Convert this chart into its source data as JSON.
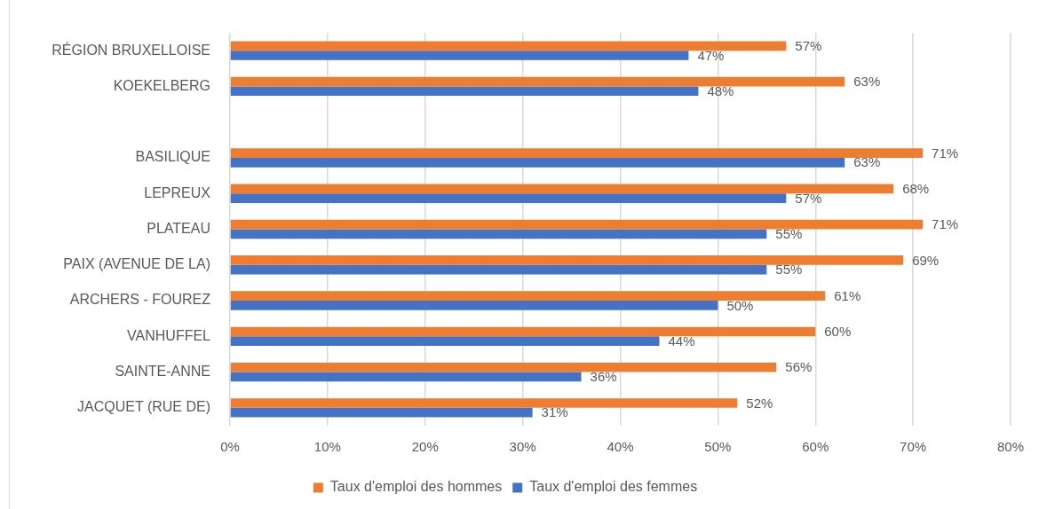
{
  "chart_data": {
    "type": "bar",
    "orientation": "horizontal",
    "categories": [
      "RÉGION BRUXELLOISE",
      "KOEKELBERG",
      null,
      "BASILIQUE",
      "LEPREUX",
      "PLATEAU",
      "PAIX (AVENUE DE LA)",
      "ARCHERS - FOUREZ",
      "VANHUFFEL",
      "SAINTE-ANNE",
      "JACQUET (RUE DE)"
    ],
    "series": [
      {
        "name": "Taux d'emploi des hommes",
        "color": "#ed7d31",
        "values": [
          57,
          63,
          null,
          71,
          68,
          71,
          69,
          61,
          60,
          56,
          52
        ],
        "value_labels": [
          "57%",
          "63%",
          null,
          "71%",
          "68%",
          "71%",
          "69%",
          "61%",
          "60%",
          "56%",
          "52%"
        ]
      },
      {
        "name": "Taux d'emploi des femmes",
        "color": "#4472c4",
        "values": [
          47,
          48,
          null,
          63,
          57,
          55,
          55,
          50,
          44,
          36,
          31
        ],
        "value_labels": [
          "47%",
          "48%",
          null,
          "63%",
          "57%",
          "55%",
          "55%",
          "50%",
          "44%",
          "36%",
          "31%"
        ]
      }
    ],
    "xlim": [
      0,
      80
    ],
    "xticks": [
      {
        "value": 0,
        "label": "0%"
      },
      {
        "value": 10,
        "label": "10%"
      },
      {
        "value": 20,
        "label": "20%"
      },
      {
        "value": 30,
        "label": "30%"
      },
      {
        "value": 40,
        "label": "40%"
      },
      {
        "value": 50,
        "label": "50%"
      },
      {
        "value": 60,
        "label": "60%"
      },
      {
        "value": 70,
        "label": "70%"
      },
      {
        "value": 80,
        "label": "80%"
      }
    ],
    "grid": "x",
    "legend": "bottom"
  }
}
